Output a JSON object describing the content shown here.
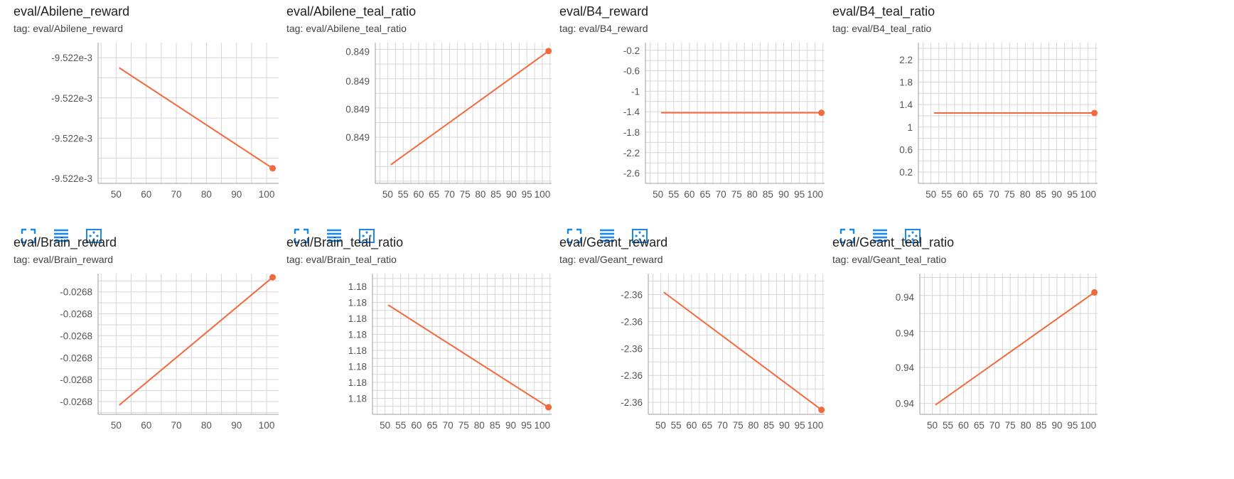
{
  "colors": {
    "series": "#f4683c",
    "grid": "#d6d6d6",
    "axis": "#9e9e9e",
    "icon": "#1e88e5"
  },
  "toolbar_icons": [
    "fullscreen-icon",
    "toggle-y-log-icon",
    "fit-domain-icon"
  ],
  "charts": [
    {
      "title": "eval/Abilene_reward",
      "tag": "tag: eval/Abilene_reward",
      "chart_data": {
        "type": "line",
        "x": [
          51,
          102
        ],
        "series": [
          {
            "values": [
              -0.0095215,
              -0.0095225
            ]
          }
        ],
        "xlim": [
          44,
          104
        ],
        "xticks": [
          50,
          60,
          70,
          80,
          90,
          100
        ],
        "ylim": [
          -0.00952265,
          -0.00952125
        ],
        "yticks": [
          {
            "v": -0.0095214,
            "label": "-9.522e-3"
          },
          {
            "v": -0.0095218,
            "label": "-9.522e-3"
          },
          {
            "v": -0.0095222,
            "label": "-9.522e-3"
          },
          {
            "v": -0.0095226,
            "label": "-9.522e-3"
          }
        ],
        "grid": true
      }
    },
    {
      "title": "eval/Abilene_teal_ratio",
      "tag": "tag: eval/Abilene_teal_ratio",
      "chart_data": {
        "type": "line",
        "x": [
          51,
          102
        ],
        "series": [
          {
            "values": [
              0.848933,
              0.849135
            ]
          }
        ],
        "xlim": [
          46,
          103
        ],
        "xticks": [
          50,
          55,
          60,
          65,
          70,
          75,
          80,
          85,
          90,
          95,
          100
        ],
        "ylim": [
          0.8489,
          0.84915
        ],
        "yticks": [
          {
            "v": 0.849134,
            "label": "0.849"
          },
          {
            "v": 0.849082,
            "label": "0.849"
          },
          {
            "v": 0.849032,
            "label": "0.849"
          },
          {
            "v": 0.848982,
            "label": "0.849"
          }
        ],
        "grid": true
      }
    },
    {
      "title": "eval/B4_reward",
      "tag": "tag: eval/B4_reward",
      "chart_data": {
        "type": "line",
        "x": [
          51,
          102
        ],
        "series": [
          {
            "values": [
              -1.42,
              -1.42
            ]
          }
        ],
        "xlim": [
          46,
          103
        ],
        "xticks": [
          50,
          55,
          60,
          65,
          70,
          75,
          80,
          85,
          90,
          95,
          100
        ],
        "ylim": [
          -2.8,
          -0.05
        ],
        "yticks": [
          {
            "v": -0.2,
            "label": "-0.2"
          },
          {
            "v": -0.6,
            "label": "-0.6"
          },
          {
            "v": -1,
            "label": "-1"
          },
          {
            "v": -1.4,
            "label": "-1.4"
          },
          {
            "v": -1.8,
            "label": "-1.8"
          },
          {
            "v": -2.2,
            "label": "-2.2"
          },
          {
            "v": -2.6,
            "label": "-2.6"
          }
        ],
        "grid": true
      }
    },
    {
      "title": "eval/B4_teal_ratio",
      "tag": "tag: eval/B4_teal_ratio",
      "chart_data": {
        "type": "line",
        "x": [
          51,
          102
        ],
        "series": [
          {
            "values": [
              1.25,
              1.25
            ]
          }
        ],
        "xlim": [
          46,
          103
        ],
        "xticks": [
          50,
          55,
          60,
          65,
          70,
          75,
          80,
          85,
          90,
          95,
          100
        ],
        "ylim": [
          0,
          2.5
        ],
        "yticks": [
          {
            "v": 2.2,
            "label": "2.2"
          },
          {
            "v": 1.8,
            "label": "1.8"
          },
          {
            "v": 1.4,
            "label": "1.4"
          },
          {
            "v": 1,
            "label": "1"
          },
          {
            "v": 0.6,
            "label": "0.6"
          },
          {
            "v": 0.2,
            "label": "0.2"
          }
        ],
        "grid": true
      }
    },
    {
      "title": "eval/Brain_reward",
      "tag": "tag: eval/Brain_reward",
      "chart_data": {
        "type": "line",
        "x": [
          51,
          102
        ],
        "series": [
          {
            "values": [
              -0.02682,
              -0.02675
            ]
          }
        ],
        "xlim": [
          44,
          104
        ],
        "xticks": [
          50,
          60,
          70,
          80,
          90,
          100
        ],
        "ylim": [
          -0.026825,
          -0.026748
        ],
        "yticks": [
          {
            "v": -0.026758,
            "label": "-0.0268"
          },
          {
            "v": -0.02677,
            "label": "-0.0268"
          },
          {
            "v": -0.026782,
            "label": "-0.0268"
          },
          {
            "v": -0.026794,
            "label": "-0.0268"
          },
          {
            "v": -0.026806,
            "label": "-0.0268"
          },
          {
            "v": -0.026818,
            "label": "-0.0268"
          }
        ],
        "grid": true
      }
    },
    {
      "title": "eval/Brain_teal_ratio",
      "tag": "tag: eval/Brain_teal_ratio",
      "chart_data": {
        "type": "line",
        "x": [
          51,
          102
        ],
        "series": [
          {
            "values": [
              1.18152,
              1.17832
            ]
          }
        ],
        "xlim": [
          46,
          103
        ],
        "xticks": [
          50,
          55,
          60,
          65,
          70,
          75,
          80,
          85,
          90,
          95,
          100
        ],
        "ylim": [
          1.1781,
          1.1825
        ],
        "yticks": [
          {
            "v": 1.1821,
            "label": "1.18"
          },
          {
            "v": 1.1816,
            "label": "1.18"
          },
          {
            "v": 1.1811,
            "label": "1.18"
          },
          {
            "v": 1.1806,
            "label": "1.18"
          },
          {
            "v": 1.1801,
            "label": "1.18"
          },
          {
            "v": 1.1796,
            "label": "1.18"
          },
          {
            "v": 1.1791,
            "label": "1.18"
          },
          {
            "v": 1.1786,
            "label": "1.18"
          }
        ],
        "grid": true
      }
    },
    {
      "title": "eval/Geant_reward",
      "tag": "tag: eval/Geant_reward",
      "chart_data": {
        "type": "line",
        "x": [
          51,
          102
        ],
        "series": [
          {
            "values": [
              -2.36192,
              -2.36585
            ]
          }
        ],
        "xlim": [
          46,
          103
        ],
        "xticks": [
          50,
          55,
          60,
          65,
          70,
          75,
          80,
          85,
          90,
          95,
          100
        ],
        "ylim": [
          -2.366,
          -2.3613
        ],
        "yticks": [
          {
            "v": -2.362,
            "label": "-2.36"
          },
          {
            "v": -2.3629,
            "label": "-2.36"
          },
          {
            "v": -2.3638,
            "label": "-2.36"
          },
          {
            "v": -2.3647,
            "label": "-2.36"
          },
          {
            "v": -2.3656,
            "label": "-2.36"
          }
        ],
        "grid": true
      }
    },
    {
      "title": "eval/Geant_teal_ratio",
      "tag": "tag: eval/Geant_teal_ratio",
      "chart_data": {
        "type": "line",
        "x": [
          51,
          102
        ],
        "series": [
          {
            "values": [
              0.93966,
              0.94038
            ]
          }
        ],
        "xlim": [
          46,
          103
        ],
        "xticks": [
          50,
          55,
          60,
          65,
          70,
          75,
          80,
          85,
          90,
          95,
          100
        ],
        "ylim": [
          0.9396,
          0.9405
        ],
        "yticks": [
          {
            "v": 0.94035,
            "label": "0.94"
          },
          {
            "v": 0.94012,
            "label": "0.94"
          },
          {
            "v": 0.9399,
            "label": "0.94"
          },
          {
            "v": 0.93967,
            "label": "0.94"
          }
        ],
        "grid": true
      }
    }
  ]
}
